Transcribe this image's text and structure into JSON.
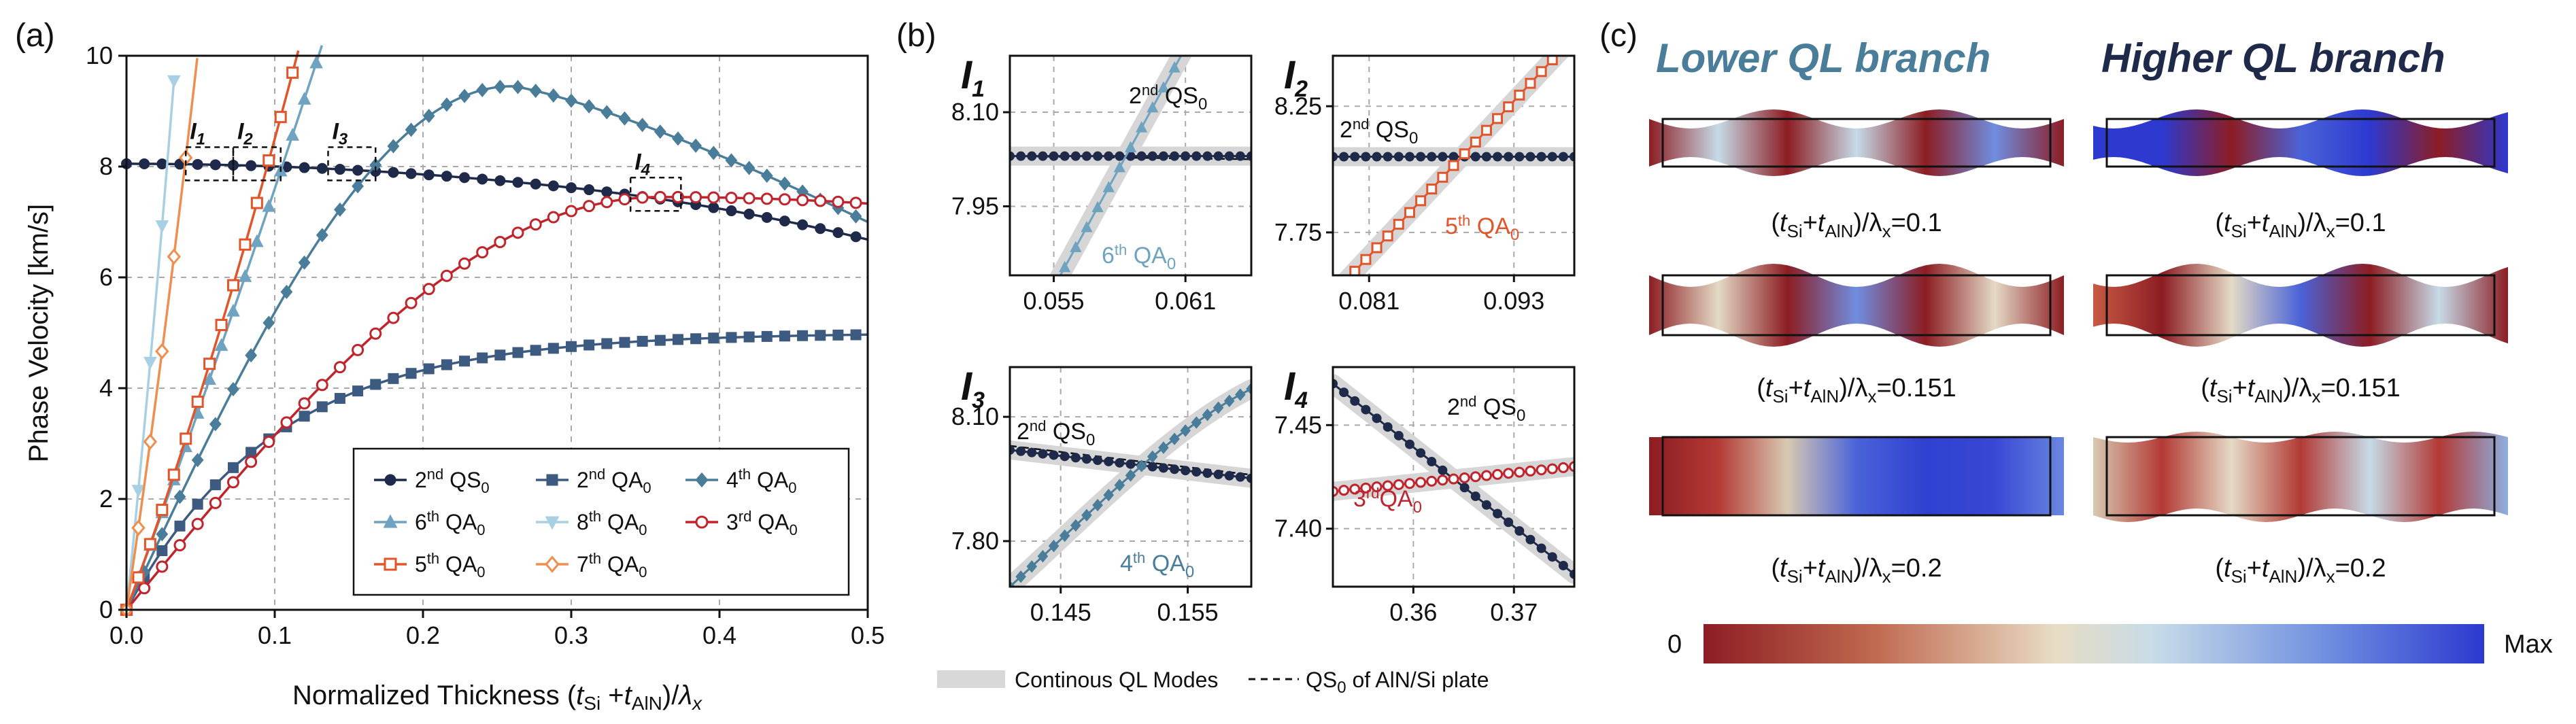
{
  "chart_data": [
    {
      "id": "a",
      "type": "line",
      "panel_label": "(a)",
      "xlabel_prefix": "Normalized Thickness (",
      "xlabel_t1": "t",
      "xlabel_s1": "Si",
      "xlabel_plus": " +",
      "xlabel_t2": "t",
      "xlabel_s2": "AlN",
      "xlabel_suffix": ")/",
      "xlabel_lambda": "λ",
      "xlabel_ls": "x",
      "ylabel": "Phase Velocity [km/s]",
      "xlim": [
        0,
        0.5
      ],
      "ylim": [
        0,
        10
      ],
      "xticks": [
        "0.0",
        "0.1",
        "0.2",
        "0.3",
        "0.4",
        "0.5"
      ],
      "yticks": [
        "0",
        "2",
        "4",
        "6",
        "8",
        "10"
      ],
      "series": [
        {
          "name": "QS0_2",
          "label_n": "2",
          "label_sup": "nd",
          "label_mode": " QS",
          "label_sub": "0",
          "color": "#1f2a4a",
          "marker": "circle",
          "kind": "qs2",
          "n": 42
        },
        {
          "name": "QA0_2",
          "label_n": "2",
          "label_sup": "nd",
          "label_mode": " QA",
          "label_sub": "0",
          "color": "#3d5a80",
          "marker": "square",
          "kind": "qa2",
          "n": 42
        },
        {
          "name": "QA0_4",
          "label_n": "4",
          "label_sup": "th",
          "label_mode": " QA",
          "label_sub": "0",
          "color": "#4a7d99",
          "marker": "diamond",
          "kind": "qa4",
          "n": 42
        },
        {
          "name": "QA0_6",
          "label_n": "6",
          "label_sup": "th",
          "label_mode": " QA",
          "label_sub": "0",
          "color": "#6fa3c0",
          "marker": "triangle",
          "kind": "qa6",
          "n": 14
        },
        {
          "name": "QA0_8",
          "label_n": "8",
          "label_sup": "th",
          "label_mode": " QA",
          "label_sub": "0",
          "color": "#a7d0e4",
          "marker": "tri-down",
          "kind": "qa8",
          "n": 5
        },
        {
          "name": "QA0_3",
          "label_n": "3",
          "label_sup": "rd",
          "label_mode": " QA",
          "label_sub": "0",
          "color": "#c0242c",
          "marker": "open-circle",
          "kind": "qa3",
          "n": 42
        },
        {
          "name": "QA0_5",
          "label_n": "5",
          "label_sup": "th",
          "label_mode": " QA",
          "label_sub": "0",
          "color": "#e2542a",
          "marker": "open-square",
          "kind": "qa5",
          "n": 11
        },
        {
          "name": "QA0_7",
          "label_n": "7",
          "label_sup": "th",
          "label_mode": " QA",
          "label_sub": "0",
          "color": "#ef8f4f",
          "marker": "open-diamond",
          "kind": "qa7",
          "n": 7
        }
      ],
      "annotations": [
        {
          "label": "I",
          "sub": "1",
          "box_x": [
            0.04,
            0.072
          ],
          "box_y": [
            7.75,
            8.35
          ]
        },
        {
          "label": "I",
          "sub": "2",
          "box_x": [
            0.072,
            0.104
          ],
          "box_y": [
            7.75,
            8.35
          ]
        },
        {
          "label": "I",
          "sub": "3",
          "box_x": [
            0.136,
            0.168
          ],
          "box_y": [
            7.75,
            8.35
          ]
        },
        {
          "label": "I",
          "sub": "4",
          "box_x": [
            0.34,
            0.374
          ],
          "box_y": [
            7.2,
            7.8
          ]
        }
      ]
    },
    {
      "id": "b1",
      "type": "line",
      "panel_label": "(b)",
      "name": "I",
      "sub": "1",
      "xlim": [
        0.053,
        0.064
      ],
      "ylim": [
        7.84,
        8.19
      ],
      "xticks": [
        0.055,
        0.061
      ],
      "xticklabels": [
        "0.055",
        "0.061"
      ],
      "yticks": [
        7.95,
        8.1
      ],
      "yticklabels": [
        "7.95",
        "8.10"
      ],
      "dashed_qs0": [
        [
          0.053,
          8.03
        ],
        [
          0.064,
          8.025
        ]
      ],
      "qs_label_n": "2",
      "qs_label_sup": "nd",
      "qs_label_mode": " QS",
      "qs_label_sub": "0",
      "qa_label_n": "6",
      "qa_label_sup": "th",
      "qa_label_mode": " QA",
      "qa_label_sub": "0",
      "qa_color": "#6fa3c0",
      "qs_color": "#1f2a4a",
      "marker": "triangle"
    },
    {
      "id": "b2",
      "type": "line",
      "name": "I",
      "sub": "2",
      "xlim": [
        0.078,
        0.098
      ],
      "ylim": [
        7.58,
        8.45
      ],
      "xticks": [
        0.081,
        0.093
      ],
      "xticklabels": [
        "0.081",
        "0.093"
      ],
      "yticks": [
        7.75,
        8.25
      ],
      "yticklabels": [
        "7.75",
        "8.25"
      ],
      "qs_label_n": "2",
      "qs_label_sup": "nd",
      "qs_label_mode": " QS",
      "qs_label_sub": "0",
      "qa_label_n": "5",
      "qa_label_sup": "th",
      "qa_label_mode": " QA",
      "qa_label_sub": "0",
      "qa_color": "#e2542a",
      "qs_color": "#1f2a4a",
      "marker": "open-square"
    },
    {
      "id": "b3",
      "type": "line",
      "name": "I",
      "sub": "3",
      "xlim": [
        0.141,
        0.16
      ],
      "ylim": [
        7.69,
        8.22
      ],
      "xticks": [
        0.145,
        0.155
      ],
      "xticklabels": [
        "0.145",
        "0.155"
      ],
      "yticks": [
        7.8,
        8.1
      ],
      "yticklabels": [
        "7.80",
        "8.10"
      ],
      "qs_label_n": "2",
      "qs_label_sup": "nd",
      "qs_label_mode": " QS",
      "qs_label_sub": "0",
      "qa_label_n": "4",
      "qa_label_sup": "th",
      "qa_label_mode": " QA",
      "qa_label_sub": "0",
      "qa_color": "#4a7d99",
      "qs_color": "#1f2a4a",
      "marker": "diamond"
    },
    {
      "id": "b4",
      "type": "line",
      "name": "I",
      "sub": "4",
      "xlim": [
        0.352,
        0.376
      ],
      "ylim": [
        7.372,
        7.478
      ],
      "xticks": [
        0.36,
        0.37
      ],
      "xticklabels": [
        "0.36",
        "0.37"
      ],
      "yticks": [
        7.4,
        7.45
      ],
      "yticklabels": [
        "7.40",
        "7.45"
      ],
      "qs_label_n": "2",
      "qs_label_sup": "nd",
      "qs_label_mode": " QS",
      "qs_label_sub": "0",
      "qa_label_n": "3",
      "qa_label_sup": "rd",
      "qa_label_mode": "QA",
      "qa_label_sub": "0",
      "qa_color": "#c0242c",
      "qs_color": "#1f2a4a",
      "marker": "open-circle"
    }
  ],
  "panel_b_legend": {
    "continuous": "Continous QL Modes",
    "qs_dashed": "QS",
    "qs_dashed_sub": "0",
    "qs_dashed_rest": " of AlN/Si plate"
  },
  "panel_c": {
    "panel_label": "(c)",
    "lower_title": "Lower QL branch",
    "higher_title": "Higher QL branch",
    "caption_lp": "(",
    "caption_t1": "t",
    "caption_s1": "Si",
    "caption_plus": "+",
    "caption_t2": "t",
    "caption_s2": "AlN",
    "caption_rp": ")/λ",
    "caption_x": "x",
    "captions_values": [
      "=0.1",
      "=0.151",
      "=0.2"
    ],
    "colorbar_min": "0",
    "colorbar_max": "Max",
    "colors": {
      "title": "#4a7d99",
      "title2": "#1f2a4a",
      "red": "#8c1d23",
      "blue": "#2f3fd1",
      "mid": "#e4dac5"
    }
  }
}
